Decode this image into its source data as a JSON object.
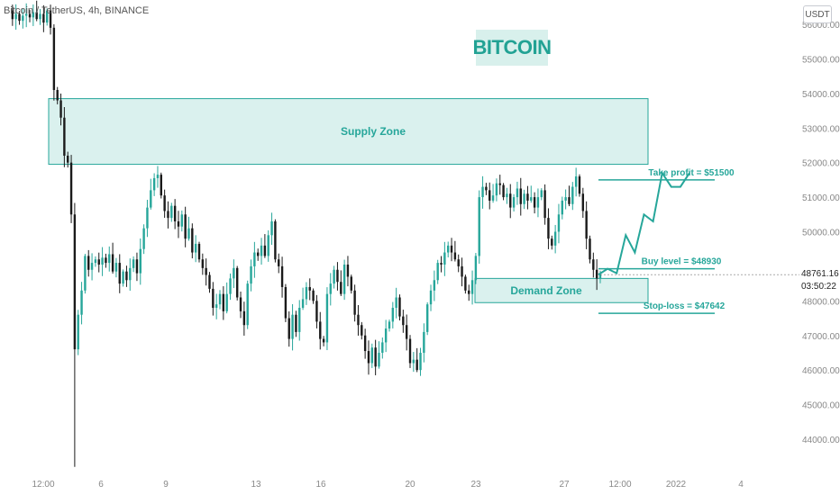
{
  "symbol": "Bitcoin / TetherUS, 4h, BINANCE",
  "currency": "USDT",
  "title": "BITCOIN",
  "chart_data": {
    "type": "candlestick",
    "title": "BITCOIN",
    "y_ticks": [
      44000,
      45000,
      46000,
      47000,
      48000,
      49000,
      50000,
      51000,
      52000,
      53000,
      54000,
      55000,
      56000
    ],
    "y_tick_labels": [
      "44000.00",
      "45000.00",
      "46000.00",
      "47000.00",
      "48000.00",
      "",
      "50000.00",
      "51000.00",
      "52000.00",
      "53000.00",
      "54000.00",
      "55000.00",
      "56000.00"
    ],
    "ylim": [
      43200,
      56400
    ],
    "x_ticks": [
      "12:00",
      "6",
      "9",
      "13",
      "16",
      "20",
      "23",
      "27",
      "12:00",
      "2022",
      "4"
    ],
    "price_series": [
      56400,
      56150,
      56300,
      56100,
      56250,
      56300,
      56200,
      56350,
      56150,
      56300,
      56050,
      56400,
      55900,
      54100,
      53800,
      53300,
      52200,
      52000,
      50500,
      46600,
      47600,
      48300,
      49300,
      48900,
      49100,
      49200,
      49050,
      49250,
      49100,
      49350,
      48850,
      49100,
      48500,
      48850,
      48600,
      48950,
      49200,
      48800,
      49500,
      50100,
      50700,
      51200,
      51550,
      51650,
      51050,
      50600,
      50400,
      50750,
      50300,
      50150,
      50500,
      49800,
      50100,
      49400,
      49650,
      49200,
      48950,
      48750,
      48350,
      47800,
      47900,
      48200,
      47700,
      48200,
      48650,
      48950,
      48100,
      47700,
      47300,
      48500,
      49000,
      49400,
      49300,
      49600,
      49300,
      49900,
      50300,
      49200,
      49000,
      48400,
      47500,
      46900,
      47600,
      47100,
      47800,
      48050,
      48400,
      48300,
      48000,
      47400,
      46900,
      46800,
      48200,
      48500,
      48900,
      48550,
      48200,
      49050,
      48700,
      48300,
      47600,
      47300,
      47000,
      46550,
      46200,
      46650,
      46100,
      46500,
      46800,
      47200,
      47400,
      47800,
      48100,
      47550,
      47300,
      46900,
      46200,
      46300,
      46000,
      46500,
      47100,
      47900,
      48300,
      48600,
      49100,
      49050,
      49400,
      49600,
      49400,
      49200,
      49000,
      48700,
      48300,
      48200,
      48600,
      49300,
      51000,
      51300,
      51200,
      50900,
      51050,
      51400,
      51350,
      51000,
      51100,
      50700,
      51000,
      51250,
      50800,
      51100,
      50900,
      51000,
      50700,
      51000,
      51200,
      50400,
      49800,
      49600,
      50000,
      50500,
      50900,
      51000,
      50800,
      51300,
      51600,
      51100,
      50600,
      49800,
      49200,
      48900,
      48650,
      48760
    ],
    "current_price": "48761.16",
    "countdown": "03:50:22",
    "annotations": {
      "supply_zone": {
        "label": "Supply Zone",
        "low": 51950,
        "high": 53850
      },
      "demand_zone": {
        "label": "Demand Zone",
        "low": 47950,
        "high": 48650
      },
      "take_profit": {
        "label": "Take profit = $51500",
        "value": 51500
      },
      "buy_level": {
        "label": "Buy level = $48930",
        "value": 48930
      },
      "stop_loss": {
        "label": "Stop-loss = $47642",
        "value": 47642
      },
      "projection": [
        48760,
        48930,
        48800,
        49900,
        49400,
        50500,
        50300,
        51700,
        51300,
        51300,
        51700
      ]
    },
    "colors": {
      "up": "#26a69a",
      "down": "#1a1a1a",
      "zone_fill": "#d4efeb",
      "zone_stroke": "#26a69a",
      "line": "#26a69a",
      "axis_text": "#888888"
    }
  }
}
